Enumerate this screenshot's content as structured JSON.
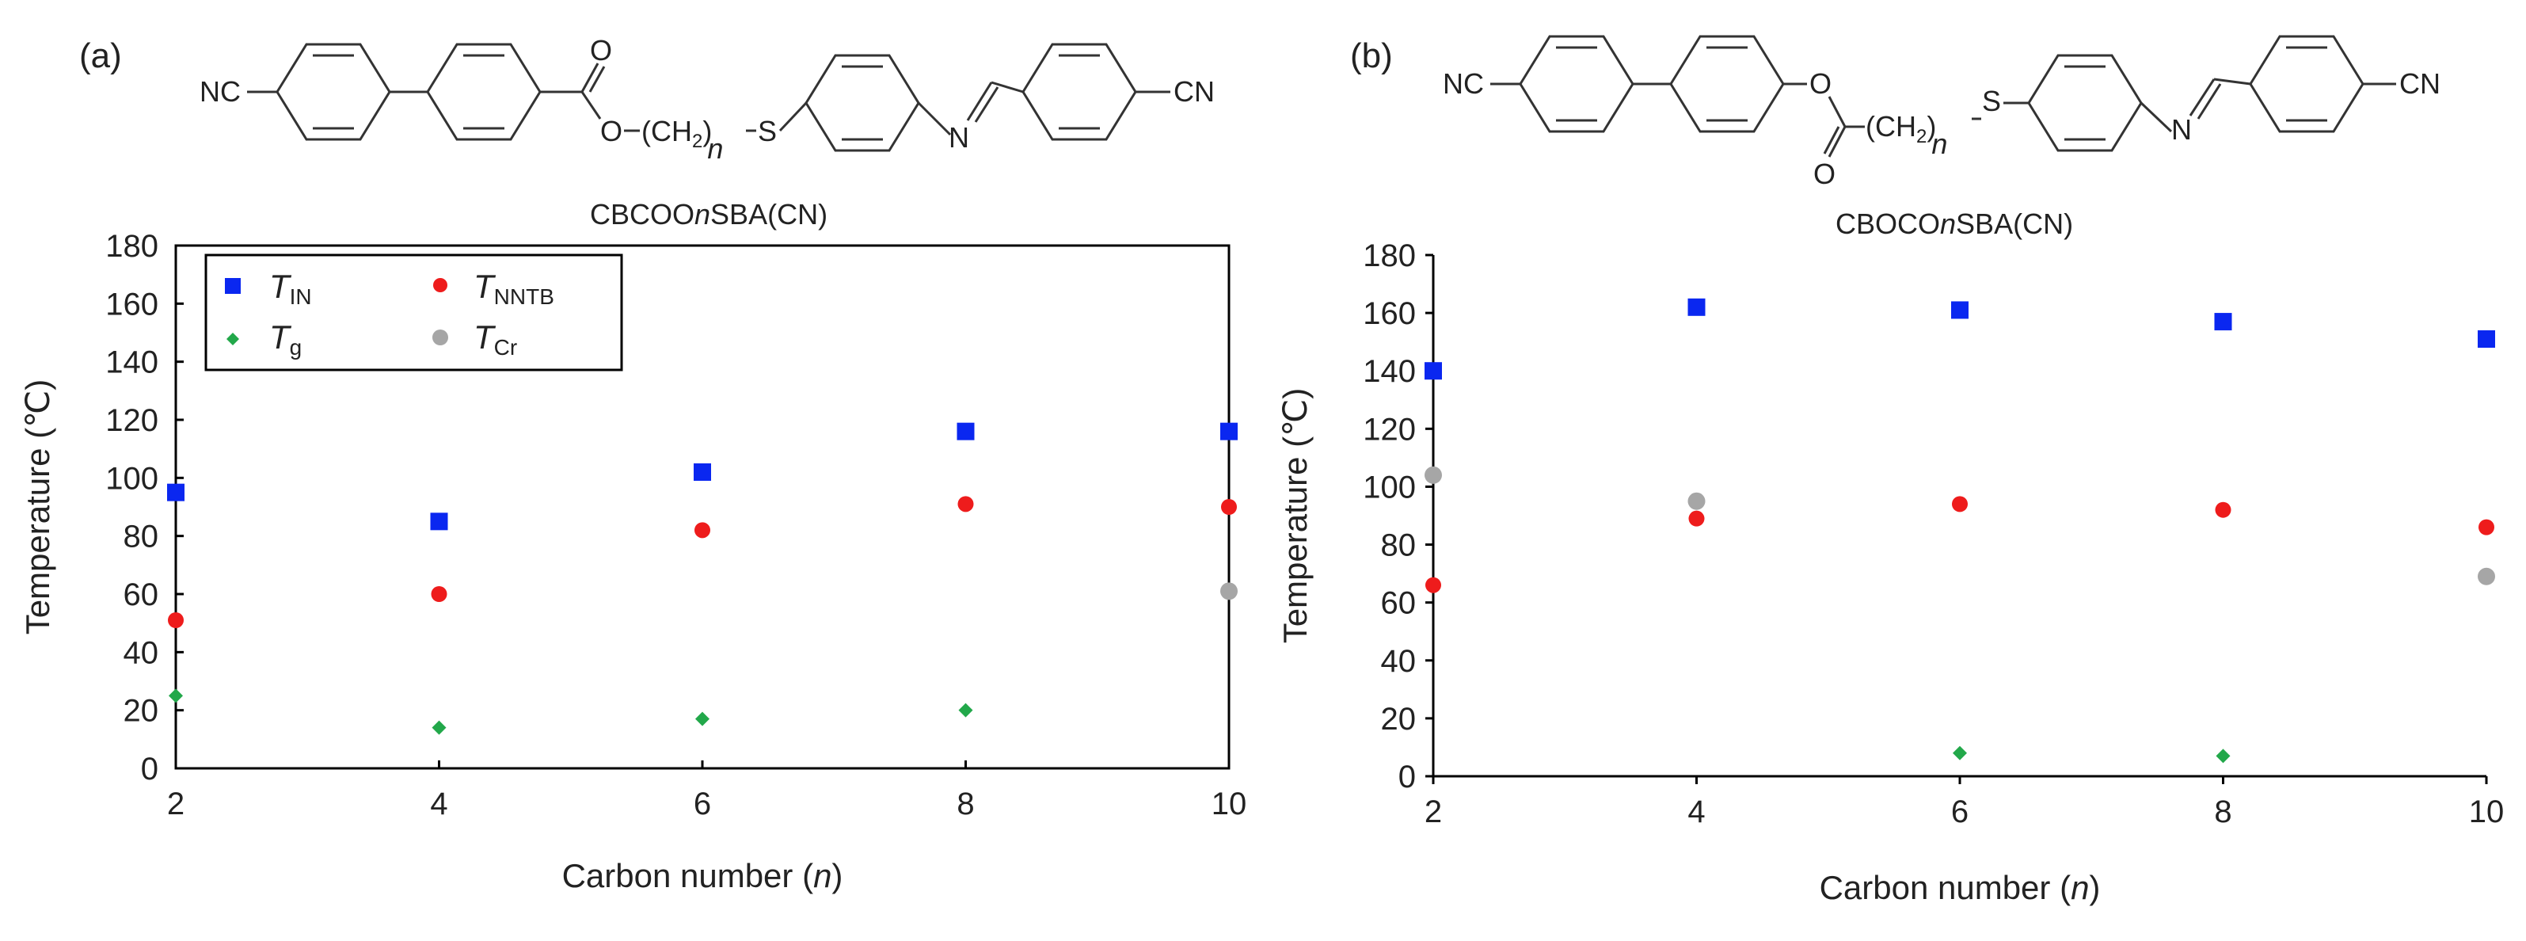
{
  "colors": {
    "T_IN": "#0a27f0",
    "T_NNTB": "#ee1c1c",
    "T_g": "#22a84a",
    "T_Cr": "#a6a6a6"
  },
  "panels": [
    {
      "panel_label": "(a)",
      "compound_name_prefix": "CBCOO",
      "compound_name_italic": "n",
      "compound_name_suffix": "SBA(CN)",
      "structure_labels": {
        "left_group": "NC",
        "right_group": "CN",
        "carbonyl_o": "O",
        "ester_o": "O",
        "chain": "(CH",
        "chain_sub": "2",
        "chain_close": ")",
        "chain_n": "n",
        "sulfur": "S",
        "nitrogen": "N"
      }
    },
    {
      "panel_label": "(b)",
      "compound_name_prefix": "CBOCO",
      "compound_name_italic": "n",
      "compound_name_suffix": "SBA(CN)",
      "structure_labels": {
        "left_group": "NC",
        "right_group": "CN",
        "carbonyl_o": "O",
        "ester_o": "O",
        "chain": "(CH",
        "chain_sub": "2",
        "chain_close": ")",
        "chain_n": "n",
        "sulfur": "S",
        "nitrogen": "N"
      }
    }
  ],
  "legend": {
    "T_IN": {
      "main": "T",
      "sub": "IN"
    },
    "T_NNTB": {
      "main": "T",
      "sub": "NNTB"
    },
    "T_g": {
      "main": "T",
      "sub": "g"
    },
    "T_Cr": {
      "main": "T",
      "sub": "Cr"
    }
  },
  "chart_data": [
    {
      "type": "scatter",
      "title": "",
      "xlabel": "Carbon number (n)",
      "ylabel": "Temperature (℃)",
      "xlim": [
        2,
        10
      ],
      "ylim": [
        0,
        180
      ],
      "xticks": [
        2,
        4,
        6,
        8,
        10
      ],
      "yticks": [
        0,
        20,
        40,
        60,
        80,
        100,
        120,
        140,
        160,
        180
      ],
      "grid": false,
      "legend_position": "top-left",
      "series": [
        {
          "name": "T_IN",
          "marker": "square",
          "x": [
            2,
            4,
            6,
            8,
            10
          ],
          "y": [
            95,
            85,
            102,
            116,
            116
          ]
        },
        {
          "name": "T_NNTB",
          "marker": "circle",
          "x": [
            2,
            4,
            6,
            8,
            10
          ],
          "y": [
            51,
            60,
            82,
            91,
            90
          ]
        },
        {
          "name": "T_g",
          "marker": "diamond",
          "x": [
            2,
            4,
            6,
            8
          ],
          "y": [
            25,
            14,
            17,
            20
          ]
        },
        {
          "name": "T_Cr",
          "marker": "circle",
          "x": [
            10
          ],
          "y": [
            61
          ]
        }
      ]
    },
    {
      "type": "scatter",
      "title": "",
      "xlabel": "Carbon number (n)",
      "ylabel": "Temperature (℃)",
      "xlim": [
        2,
        10
      ],
      "ylim": [
        0,
        180
      ],
      "xticks": [
        2,
        4,
        6,
        8,
        10
      ],
      "yticks": [
        0,
        20,
        40,
        60,
        80,
        100,
        120,
        140,
        160,
        180
      ],
      "grid": false,
      "legend_position": "none",
      "series": [
        {
          "name": "T_IN",
          "marker": "square",
          "x": [
            2,
            4,
            6,
            8,
            10
          ],
          "y": [
            140,
            162,
            161,
            157,
            151
          ]
        },
        {
          "name": "T_NNTB",
          "marker": "circle",
          "x": [
            2,
            4,
            6,
            8,
            10
          ],
          "y": [
            66,
            89,
            94,
            92,
            86
          ]
        },
        {
          "name": "T_g",
          "marker": "diamond",
          "x": [
            6,
            8
          ],
          "y": [
            8,
            7
          ]
        },
        {
          "name": "T_Cr",
          "marker": "circle",
          "x": [
            2,
            4,
            10
          ],
          "y": [
            104,
            95,
            69
          ]
        }
      ]
    }
  ]
}
